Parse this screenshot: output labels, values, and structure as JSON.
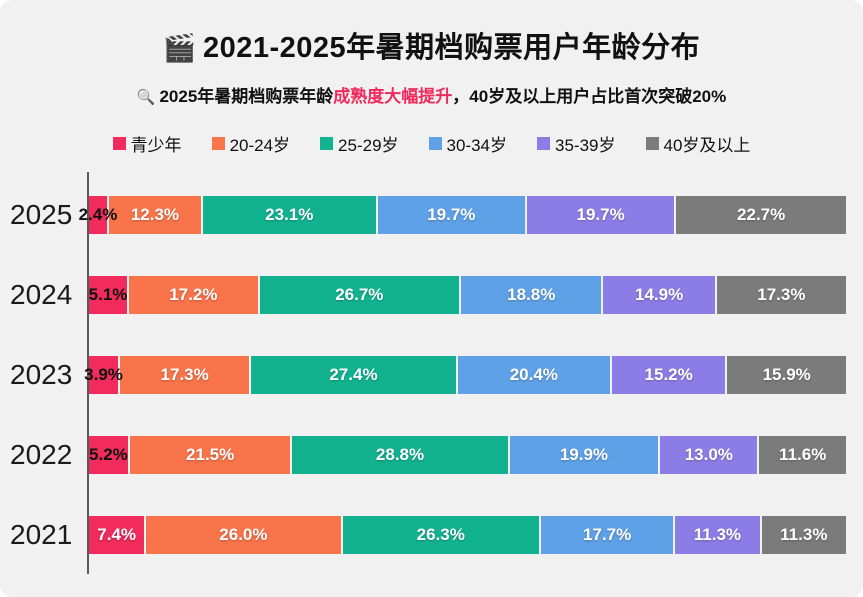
{
  "page": {
    "background": "#f1f1f2"
  },
  "header": {
    "title_icon": "🎬",
    "title": "2021-2025年暑期档购票用户年龄分布",
    "subtitle_icon": "🔍",
    "subtitle_prefix": "2025年暑期档购票年龄",
    "subtitle_highlight": "成熟度大幅提升",
    "subtitle_suffix": "，40岁及以上用户占比首次突破20%",
    "highlight_color": "#f02b5c"
  },
  "chart_data": {
    "type": "bar",
    "orientation": "horizontal",
    "stacked": true,
    "title": "2021-2025年暑期档购票用户年龄分布",
    "categories": [
      "2025",
      "2024",
      "2023",
      "2022",
      "2021"
    ],
    "series": [
      {
        "name": "青少年",
        "color": "#f12b5b",
        "values": [
          2.4,
          5.1,
          3.9,
          5.2,
          7.4
        ]
      },
      {
        "name": "20-24岁",
        "color": "#f9744a",
        "values": [
          12.3,
          17.2,
          17.3,
          21.5,
          26.0
        ]
      },
      {
        "name": "25-29岁",
        "color": "#12b291",
        "values": [
          23.1,
          26.7,
          27.4,
          28.8,
          26.3
        ]
      },
      {
        "name": "30-34岁",
        "color": "#5fa1e6",
        "values": [
          19.7,
          18.8,
          20.4,
          19.9,
          17.7
        ]
      },
      {
        "name": "35-39岁",
        "color": "#8c7de6",
        "values": [
          19.7,
          14.9,
          15.2,
          13.0,
          11.3
        ]
      },
      {
        "name": "40岁及以上",
        "color": "#7b7b7b",
        "values": [
          22.7,
          17.3,
          15.9,
          11.6,
          11.3
        ]
      }
    ],
    "value_suffix": "%",
    "value_decimals": 1,
    "xlim": [
      0,
      100
    ],
    "legend_position": "top",
    "grid": false,
    "axis_color": "#58595b"
  }
}
